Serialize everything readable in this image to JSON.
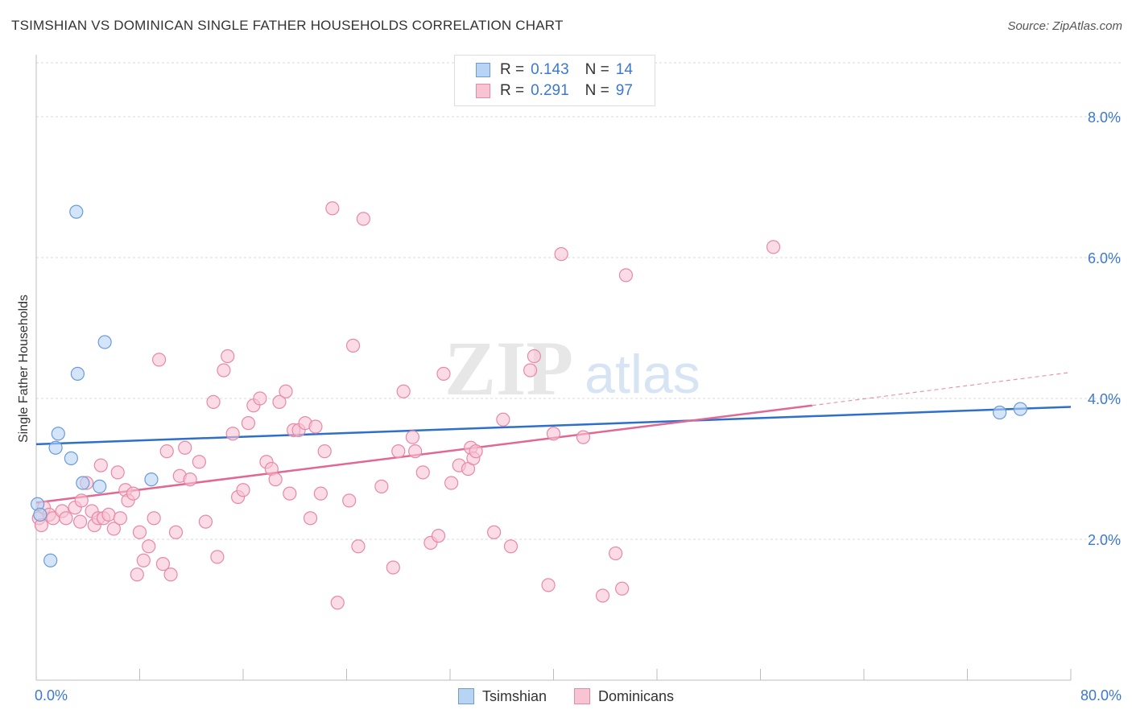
{
  "title": "TSIMSHIAN VS DOMINICAN SINGLE FATHER HOUSEHOLDS CORRELATION CHART",
  "source": "Source: ZipAtlas.com",
  "watermark": {
    "zip": "ZIP",
    "atlas": "atlas"
  },
  "colors": {
    "tsimshian_fill": "#b8d4f5",
    "tsimshian_stroke": "#6c9bd6",
    "tsimshian_line": "#2e6fcc",
    "dominican_fill": "#f8c3d3",
    "dominican_stroke": "#e889a6",
    "dominican_line": "#e06892",
    "axis_label": "#3b78d0"
  },
  "legend_top": [
    {
      "r_label": "R =",
      "r_value": "0.143",
      "n_label": "N =",
      "n_value": "14"
    },
    {
      "r_label": "R =",
      "r_value": "0.291",
      "n_label": "N =",
      "n_value": "97"
    }
  ],
  "legend_bottom": [
    "Tsimshian",
    "Dominicans"
  ],
  "chart_data": {
    "type": "scatter",
    "title": "TSIMSHIAN VS DOMINICAN SINGLE FATHER HOUSEHOLDS CORRELATION CHART",
    "xlabel": "",
    "ylabel": "Single Father Households",
    "xlim": [
      0,
      80
    ],
    "ylim": [
      0,
      8.8
    ],
    "x_tick_labels": [
      "0.0%",
      "80.0%"
    ],
    "y_ticks": [
      2,
      4,
      6,
      8
    ],
    "y_tick_labels": [
      "2.0%",
      "4.0%",
      "6.0%",
      "8.0%"
    ],
    "grid": true,
    "series": [
      {
        "name": "Tsimshian",
        "points": [
          [
            0.1,
            2.5
          ],
          [
            0.3,
            2.35
          ],
          [
            1.1,
            1.7
          ],
          [
            1.5,
            3.3
          ],
          [
            1.7,
            3.5
          ],
          [
            2.7,
            3.15
          ],
          [
            3.1,
            6.65
          ],
          [
            3.2,
            4.35
          ],
          [
            3.6,
            2.8
          ],
          [
            4.9,
            2.75
          ],
          [
            5.3,
            4.8
          ],
          [
            8.9,
            2.85
          ],
          [
            74.5,
            3.8
          ],
          [
            76.1,
            3.85
          ]
        ],
        "trend": {
          "x": [
            0,
            80
          ],
          "y": [
            3.35,
            3.88
          ]
        }
      },
      {
        "name": "Dominicans",
        "points": [
          [
            0.2,
            2.3
          ],
          [
            0.4,
            2.2
          ],
          [
            0.6,
            2.45
          ],
          [
            1.0,
            2.35
          ],
          [
            1.3,
            2.3
          ],
          [
            2.0,
            2.4
          ],
          [
            2.3,
            2.3
          ],
          [
            3.0,
            2.45
          ],
          [
            3.4,
            2.25
          ],
          [
            3.5,
            2.55
          ],
          [
            3.9,
            2.8
          ],
          [
            4.3,
            2.4
          ],
          [
            4.5,
            2.2
          ],
          [
            4.8,
            2.3
          ],
          [
            5.0,
            3.05
          ],
          [
            5.2,
            2.3
          ],
          [
            5.6,
            2.35
          ],
          [
            6.0,
            2.15
          ],
          [
            6.3,
            2.95
          ],
          [
            6.5,
            2.3
          ],
          [
            6.9,
            2.7
          ],
          [
            7.1,
            2.55
          ],
          [
            7.5,
            2.65
          ],
          [
            7.8,
            1.5
          ],
          [
            8.0,
            2.1
          ],
          [
            8.3,
            1.7
          ],
          [
            8.7,
            1.9
          ],
          [
            9.1,
            2.3
          ],
          [
            9.5,
            4.55
          ],
          [
            9.8,
            1.65
          ],
          [
            10.1,
            3.25
          ],
          [
            10.4,
            1.5
          ],
          [
            10.8,
            2.1
          ],
          [
            11.1,
            2.9
          ],
          [
            11.5,
            3.3
          ],
          [
            11.9,
            2.85
          ],
          [
            12.6,
            3.1
          ],
          [
            13.1,
            2.25
          ],
          [
            13.7,
            3.95
          ],
          [
            14.0,
            1.75
          ],
          [
            14.5,
            4.4
          ],
          [
            14.8,
            4.6
          ],
          [
            15.2,
            3.5
          ],
          [
            15.6,
            2.6
          ],
          [
            16.0,
            2.7
          ],
          [
            16.4,
            3.65
          ],
          [
            16.8,
            3.9
          ],
          [
            17.3,
            4.0
          ],
          [
            17.8,
            3.1
          ],
          [
            18.2,
            3.0
          ],
          [
            18.5,
            2.85
          ],
          [
            18.8,
            3.95
          ],
          [
            19.3,
            4.1
          ],
          [
            19.6,
            2.65
          ],
          [
            19.9,
            3.55
          ],
          [
            20.3,
            3.55
          ],
          [
            20.8,
            3.65
          ],
          [
            21.2,
            2.3
          ],
          [
            21.6,
            3.6
          ],
          [
            22.0,
            2.65
          ],
          [
            22.3,
            3.25
          ],
          [
            22.9,
            6.7
          ],
          [
            23.3,
            1.1
          ],
          [
            24.2,
            2.55
          ],
          [
            24.5,
            4.75
          ],
          [
            24.9,
            1.9
          ],
          [
            25.3,
            6.55
          ],
          [
            26.7,
            2.75
          ],
          [
            27.6,
            1.6
          ],
          [
            28.0,
            3.25
          ],
          [
            28.4,
            4.1
          ],
          [
            29.1,
            3.45
          ],
          [
            29.3,
            3.25
          ],
          [
            29.9,
            2.95
          ],
          [
            30.5,
            1.95
          ],
          [
            31.1,
            2.05
          ],
          [
            31.5,
            4.35
          ],
          [
            32.1,
            2.8
          ],
          [
            32.7,
            3.05
          ],
          [
            33.4,
            3.0
          ],
          [
            33.6,
            3.3
          ],
          [
            33.8,
            3.15
          ],
          [
            34.0,
            3.25
          ],
          [
            35.4,
            2.1
          ],
          [
            36.1,
            3.7
          ],
          [
            36.7,
            1.9
          ],
          [
            38.2,
            4.4
          ],
          [
            38.5,
            4.6
          ],
          [
            39.6,
            1.35
          ],
          [
            40.0,
            3.5
          ],
          [
            40.6,
            6.05
          ],
          [
            42.3,
            3.45
          ],
          [
            43.8,
            1.2
          ],
          [
            44.8,
            1.8
          ],
          [
            45.3,
            1.3
          ],
          [
            45.6,
            5.75
          ],
          [
            57.0,
            6.15
          ]
        ],
        "trend": {
          "x": [
            0,
            60
          ],
          "y": [
            2.52,
            3.9
          ]
        },
        "trend_extension": {
          "x": [
            60,
            80
          ],
          "y": [
            3.9,
            4.37
          ]
        }
      }
    ]
  }
}
